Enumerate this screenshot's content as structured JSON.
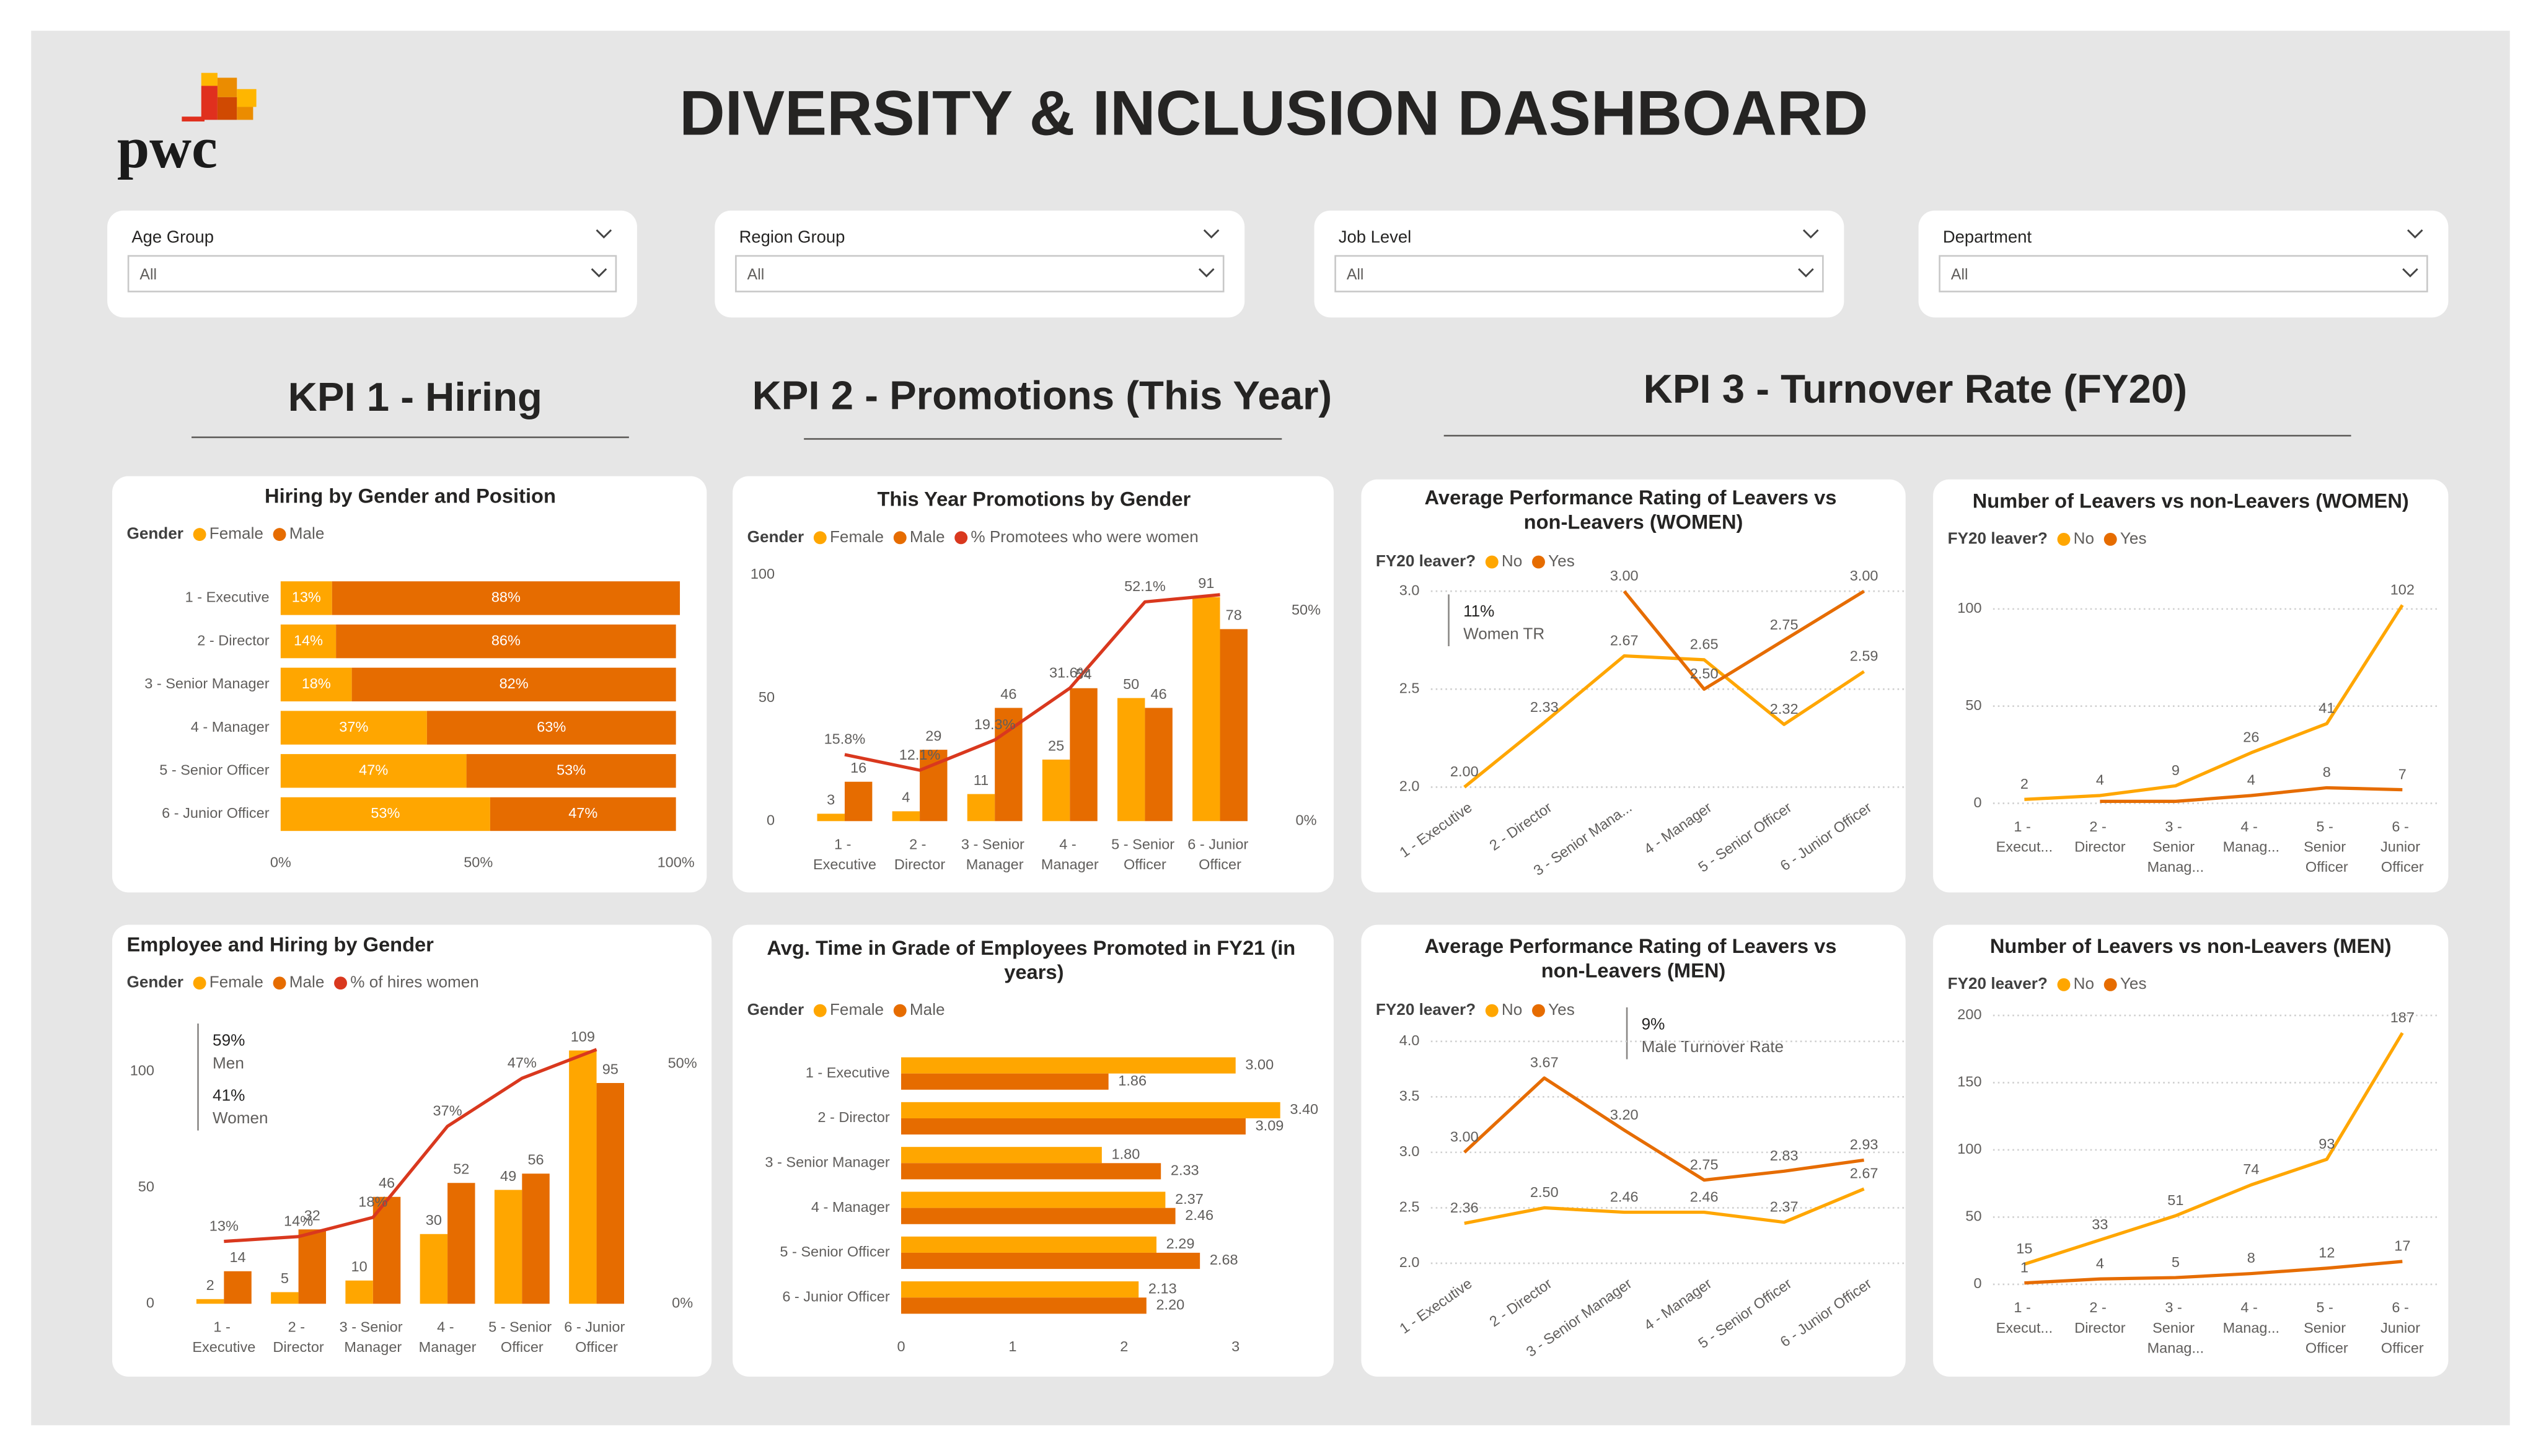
{
  "header": {
    "logo": "pwc",
    "title": "DIVERSITY & INCLUSION DASHBOARD"
  },
  "filters": [
    {
      "label": "Age Group",
      "value": "All"
    },
    {
      "label": "Region Group",
      "value": "All"
    },
    {
      "label": "Job Level",
      "value": "All"
    },
    {
      "label": "Department",
      "value": "All"
    }
  ],
  "sections": [
    {
      "title": "KPI 1 - Hiring"
    },
    {
      "title": "KPI 2 - Promotions (This Year)"
    },
    {
      "title": "KPI 3 - Turnover Rate (FY20)"
    }
  ],
  "chart_data": [
    {
      "type": "hbar",
      "stacked": true,
      "title": "Hiring by Gender and Position",
      "legend_title": "Gender",
      "categories": [
        "1 - Executive",
        "2 - Director",
        "3 - Senior Manager",
        "4 - Manager",
        "5 - Senior Officer",
        "6 - Junior Officer"
      ],
      "series": [
        {
          "name": "Female",
          "color": "#FFA600",
          "values": [
            13,
            14,
            18,
            37,
            47,
            53
          ],
          "value_labels": [
            "13%",
            "14%",
            "18%",
            "37%",
            "47%",
            "53%"
          ]
        },
        {
          "name": "Male",
          "color": "#E66C00",
          "values": [
            88,
            86,
            82,
            63,
            53,
            47
          ],
          "value_labels": [
            "88%",
            "86%",
            "82%",
            "63%",
            "53%",
            "47%"
          ]
        }
      ],
      "xlim": [
        0,
        100
      ],
      "xticks": [
        {
          "value": 0,
          "label": "0%"
        },
        {
          "value": 50,
          "label": "50%"
        },
        {
          "value": 100,
          "label": "100%"
        }
      ],
      "grid": false
    },
    {
      "type": "combo",
      "title": "This Year Promotions by Gender",
      "legend_title": "Gender",
      "categories": [
        "1 - Executive",
        "2 - Director",
        "3 - Senior Manager",
        "4 - Manager",
        "5 - Senior Officer",
        "6 - Junior Officer"
      ],
      "series": [
        {
          "name": "Female",
          "color": "#FFA600",
          "values": [
            3,
            4,
            11,
            25,
            50,
            91
          ]
        },
        {
          "name": "Male",
          "color": "#E66C00",
          "values": [
            16,
            29,
            46,
            54,
            46,
            78
          ]
        },
        {
          "name": "% Promotees who were women",
          "color": "#D9381E",
          "axis": "y2",
          "values": [
            15.8,
            12.1,
            19.3,
            31.6,
            52.1,
            53.8
          ],
          "value_labels": [
            "15.8%",
            "12.1%",
            "19.3%",
            "31.6%",
            "52.1%",
            null
          ]
        }
      ],
      "ylim": [
        0,
        100
      ],
      "yticks": [
        0,
        50,
        100
      ],
      "y2lim": [
        0,
        58.5
      ],
      "y2ticks": [
        {
          "value": 0,
          "label": "0%"
        },
        {
          "value": 50,
          "label": "50%"
        }
      ],
      "grid": false
    },
    {
      "type": "line",
      "title": "Average Performance Rating of Leavers vs non-Leavers (WOMEN)",
      "legend_title": "FY20 leaver?",
      "annotations": [
        {
          "value": "11%",
          "label": "Women TR"
        }
      ],
      "categories": [
        "1 - Executive",
        "2 - Director",
        "3 - Senior Mana...",
        "4 - Manager",
        "5 - Senior Officer",
        "6 - Junior Officer"
      ],
      "series": [
        {
          "name": "No",
          "color": "#FFA600",
          "values": [
            2.0,
            2.33,
            2.67,
            2.65,
            2.32,
            2.59
          ],
          "value_labels": [
            "2.00",
            "2.33",
            "2.67",
            "2.65",
            "2.32",
            "2.59"
          ]
        },
        {
          "name": "Yes",
          "color": "#E66C00",
          "values": [
            null,
            null,
            3.0,
            2.5,
            2.75,
            3.0
          ],
          "value_labels": [
            null,
            null,
            "3.00",
            "2.50",
            "2.75",
            "3.00"
          ]
        }
      ],
      "ylim": [
        2,
        3.05
      ],
      "yticks": [
        {
          "value": 2,
          "label": "2.0"
        },
        {
          "value": 2.5,
          "label": "2.5"
        },
        {
          "value": 3,
          "label": "3.0"
        }
      ],
      "grid": true,
      "rotate_labels": true
    },
    {
      "type": "line",
      "title": "Number of Leavers vs non-Leavers (WOMEN)",
      "legend_title": "FY20 leaver?",
      "categories": [
        "1 - Execut...",
        "2 - Director",
        "3 - Senior Manag...",
        "4 - Manag...",
        "5 - Senior Officer",
        "6 - Junior Officer"
      ],
      "series": [
        {
          "name": "No",
          "color": "#FFA600",
          "values": [
            2,
            4,
            9,
            26,
            41,
            102
          ],
          "value_labels": [
            "2",
            "4",
            "9",
            "26",
            "41",
            "102"
          ]
        },
        {
          "name": "Yes",
          "color": "#E66C00",
          "values": [
            null,
            1,
            1,
            4,
            8,
            7
          ],
          "value_labels": [
            null,
            null,
            null,
            "4",
            "8",
            "7"
          ]
        }
      ],
      "ylim": [
        0,
        110
      ],
      "yticks": [
        0,
        50,
        100
      ],
      "grid": true,
      "rotate_labels": false
    },
    {
      "type": "combo",
      "title": "Employee and Hiring by Gender",
      "legend_title": "Gender",
      "annotations": [
        {
          "value": "59%",
          "label": "Men"
        },
        {
          "value": "41%",
          "label": "Women"
        }
      ],
      "categories": [
        "1 - Executive",
        "2 - Director",
        "3 - Senior Manager",
        "4 - Manager",
        "5 - Senior Officer",
        "6 - Junior Officer"
      ],
      "series": [
        {
          "name": "Female",
          "color": "#FFA600",
          "values": [
            2,
            5,
            10,
            30,
            49,
            109
          ]
        },
        {
          "name": "Male",
          "color": "#E66C00",
          "values": [
            14,
            32,
            46,
            52,
            56,
            95
          ]
        },
        {
          "name": "% of hires women",
          "color": "#D9381E",
          "axis": "y2",
          "values": [
            13,
            14,
            18,
            37,
            47,
            53
          ],
          "value_labels": [
            "13%",
            "14%",
            "18%",
            "37%",
            "47%",
            null
          ]
        }
      ],
      "ylim": [
        0,
        115
      ],
      "yticks": [
        0,
        50,
        100
      ],
      "y2lim": [
        0,
        55.7
      ],
      "y2ticks": [
        {
          "value": 0,
          "label": "0%"
        },
        {
          "value": 50,
          "label": "50%"
        }
      ],
      "grid": false
    },
    {
      "type": "hbar",
      "stacked": false,
      "title": "Avg. Time in Grade of Employees Promoted in FY21 (in years)",
      "legend_title": "Gender",
      "categories": [
        "1 - Executive",
        "2 - Director",
        "3 - Senior Manager",
        "4 - Manager",
        "5 - Senior Officer",
        "6 - Junior Officer"
      ],
      "series": [
        {
          "name": "Female",
          "color": "#FFA600",
          "values": [
            3.0,
            3.4,
            1.8,
            2.37,
            2.29,
            2.13
          ],
          "value_labels": [
            "3.00",
            "3.40",
            "1.80",
            "2.37",
            "2.29",
            "2.13"
          ]
        },
        {
          "name": "Male",
          "color": "#E66C00",
          "values": [
            1.86,
            3.09,
            2.33,
            2.46,
            2.68,
            2.2
          ],
          "value_labels": [
            "1.86",
            "3.09",
            "2.33",
            "2.46",
            "2.68",
            "2.20"
          ]
        }
      ],
      "xlim": [
        0,
        3.4
      ],
      "xticks": [
        0,
        1,
        2,
        3
      ],
      "grid": false
    },
    {
      "type": "line",
      "title": "Average Performance Rating of Leavers vs non-Leavers (MEN)",
      "legend_title": "FY20 leaver?",
      "annotations": [
        {
          "value": "9%",
          "label": "Male Turnover Rate"
        }
      ],
      "categories": [
        "1 - Executive",
        "2 - Director",
        "3 - Senior Manager",
        "4 - Manager",
        "5 - Senior Officer",
        "6 - Junior Officer"
      ],
      "series": [
        {
          "name": "No",
          "color": "#FFA600",
          "values": [
            2.36,
            2.5,
            2.46,
            2.46,
            2.37,
            2.67
          ],
          "value_labels": [
            "2.36",
            "2.50",
            "2.46",
            "2.46",
            "2.37",
            "2.67"
          ]
        },
        {
          "name": "Yes",
          "color": "#E66C00",
          "values": [
            3.0,
            3.67,
            3.2,
            2.75,
            2.83,
            2.93
          ],
          "value_labels": [
            "3.00",
            "3.67",
            "3.20",
            "2.75",
            "2.83",
            "2.93"
          ]
        }
      ],
      "ylim": [
        2,
        4
      ],
      "yticks": [
        {
          "value": 2,
          "label": "2.0"
        },
        {
          "value": 2.5,
          "label": "2.5"
        },
        {
          "value": 3,
          "label": "3.0"
        },
        {
          "value": 3.5,
          "label": "3.5"
        },
        {
          "value": 4,
          "label": "4.0"
        }
      ],
      "grid": true,
      "rotate_labels": true
    },
    {
      "type": "line",
      "title": "Number of Leavers vs non-Leavers (MEN)",
      "legend_title": "FY20 leaver?",
      "categories": [
        "1 - Execut...",
        "2 - Director",
        "3 - Senior Manag...",
        "4 - Manag...",
        "5 - Senior Officer",
        "6 - Junior Officer"
      ],
      "series": [
        {
          "name": "No",
          "color": "#FFA600",
          "values": [
            15,
            33,
            51,
            74,
            93,
            187
          ],
          "value_labels": [
            "15",
            "33",
            "51",
            "74",
            "93",
            "187"
          ]
        },
        {
          "name": "Yes",
          "color": "#E66C00",
          "values": [
            1,
            4,
            5,
            8,
            12,
            17
          ],
          "value_labels": [
            "1",
            "4",
            "5",
            "8",
            "12",
            "17"
          ]
        }
      ],
      "ylim": [
        0,
        200
      ],
      "yticks": [
        0,
        50,
        100,
        150,
        200
      ],
      "grid": true,
      "rotate_labels": false
    }
  ]
}
